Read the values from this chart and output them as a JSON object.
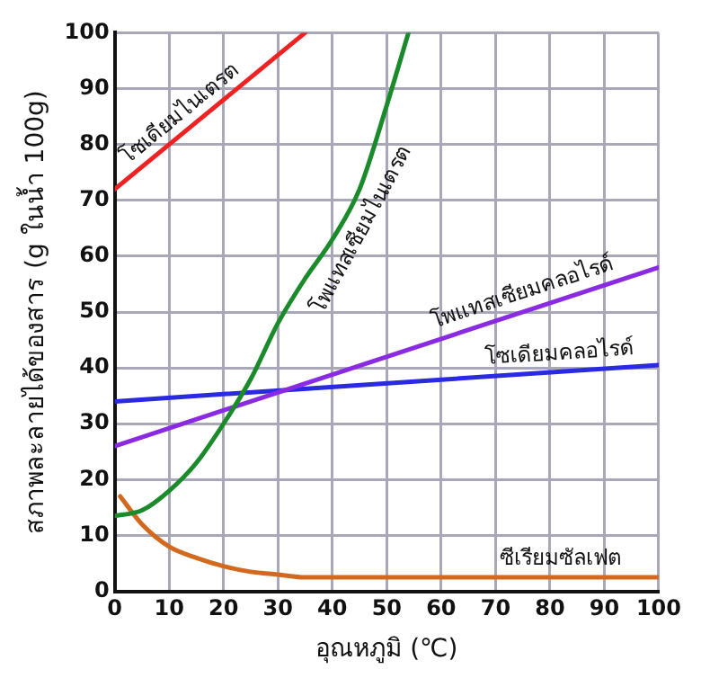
{
  "chart_data": {
    "type": "line",
    "xlabel": "อุณหภูมิ (℃)",
    "ylabel": "สภาพละลายได้ของสาร (g ในน้ำ 100g)",
    "xlim": [
      0,
      100
    ],
    "xticks": [
      0,
      10,
      20,
      30,
      40,
      50,
      60,
      70,
      80,
      90,
      100
    ],
    "ylim": [
      0,
      100
    ],
    "yticks": [
      0,
      10,
      20,
      30,
      40,
      50,
      60,
      70,
      80,
      90,
      100
    ],
    "grid": true,
    "legend": false,
    "marker": "none",
    "line_style": "solid",
    "series": [
      {
        "name": "โซเดียมไนเตรต",
        "color": "#ee2222",
        "x": [
          0,
          35
        ],
        "values": [
          72,
          100
        ]
      },
      {
        "name": "โพแทสเซียมไนเตรต",
        "color": "#1a8a2a",
        "x": [
          0,
          5,
          10,
          15,
          20,
          25,
          30,
          35,
          40,
          45,
          50,
          54
        ],
        "values": [
          13.5,
          14.5,
          18,
          23,
          30,
          38,
          48,
          56,
          63,
          72,
          87,
          100
        ]
      },
      {
        "name": "โพแทสเซียมคลอไรด์",
        "color": "#8a2be2",
        "x": [
          0,
          100
        ],
        "values": [
          26,
          58
        ]
      },
      {
        "name": "โซเดียมคลอไรด์",
        "color": "#2a2ae0",
        "x": [
          0,
          100
        ],
        "values": [
          34,
          40.5
        ]
      },
      {
        "name": "ซีเรียมซัลเฟต",
        "color": "#d2691e",
        "x": [
          1,
          5,
          10,
          15,
          20,
          25,
          30,
          35,
          40,
          100
        ],
        "values": [
          17,
          12,
          8,
          6,
          4.5,
          3.5,
          3,
          2.5,
          2.5,
          2.5
        ]
      }
    ]
  }
}
